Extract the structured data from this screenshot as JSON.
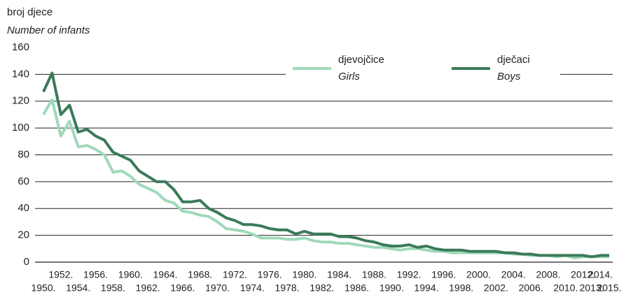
{
  "chart_data": {
    "type": "line",
    "y_label": "broj djece",
    "y_label_en": "Number of infants",
    "x": [
      1950,
      1951,
      1952,
      1953,
      1954,
      1955,
      1956,
      1957,
      1958,
      1959,
      1960,
      1961,
      1962,
      1963,
      1964,
      1965,
      1966,
      1967,
      1968,
      1969,
      1970,
      1971,
      1972,
      1973,
      1974,
      1975,
      1976,
      1977,
      1978,
      1979,
      1980,
      1981,
      1982,
      1983,
      1984,
      1985,
      1986,
      1987,
      1988,
      1989,
      1990,
      1991,
      1992,
      1993,
      1994,
      1995,
      1996,
      1997,
      1998,
      1999,
      2000,
      2001,
      2002,
      2003,
      2004,
      2005,
      2006,
      2007,
      2008,
      2009,
      2010,
      2011,
      2012,
      2013,
      2014,
      2015
    ],
    "series": [
      {
        "name": "djevojčice",
        "name_en": "Girls",
        "color": "#9fd9ba",
        "values": [
          110,
          121,
          94,
          105,
          86,
          87,
          84,
          80,
          67,
          68,
          64,
          58,
          55,
          52,
          46,
          44,
          38,
          37,
          35,
          34,
          30,
          25,
          24,
          23,
          21,
          18,
          18,
          18,
          17,
          17,
          18,
          16,
          15,
          15,
          14,
          14,
          13,
          12,
          11,
          11,
          10,
          9,
          10,
          10,
          9,
          8,
          8,
          7,
          7,
          7,
          7,
          7,
          7,
          7,
          6,
          6,
          5,
          5,
          5,
          4,
          5,
          3,
          4,
          4,
          4,
          4
        ]
      },
      {
        "name": "dječaci",
        "name_en": "Boys",
        "color": "#3b7a5a",
        "values": [
          127,
          141,
          110,
          117,
          97,
          99,
          94,
          91,
          82,
          79,
          76,
          68,
          64,
          60,
          60,
          54,
          45,
          45,
          46,
          40,
          37,
          33,
          31,
          28,
          28,
          27,
          25,
          24,
          24,
          21,
          23,
          21,
          21,
          21,
          19,
          19,
          18,
          16,
          15,
          13,
          12,
          12,
          13,
          11,
          12,
          10,
          9,
          9,
          9,
          8,
          8,
          8,
          8,
          7,
          7,
          6,
          6,
          5,
          5,
          5,
          5,
          5,
          5,
          4,
          5,
          5
        ]
      }
    ],
    "xlim": [
      1950,
      2015
    ],
    "xticks": [
      {
        "value": 1950,
        "label": "1950."
      },
      {
        "value": 1952,
        "label": "1952."
      },
      {
        "value": 1954,
        "label": "1954."
      },
      {
        "value": 1956,
        "label": "1956."
      },
      {
        "value": 1958,
        "label": "1958."
      },
      {
        "value": 1960,
        "label": "1960."
      },
      {
        "value": 1962,
        "label": "1962."
      },
      {
        "value": 1964,
        "label": "1964."
      },
      {
        "value": 1966,
        "label": "1966."
      },
      {
        "value": 1968,
        "label": "1968."
      },
      {
        "value": 1970,
        "label": "1970."
      },
      {
        "value": 1972,
        "label": "1972."
      },
      {
        "value": 1974,
        "label": "1974."
      },
      {
        "value": 1976,
        "label": "1976."
      },
      {
        "value": 1978,
        "label": "1978."
      },
      {
        "value": 1980,
        "label": "1980."
      },
      {
        "value": 1982,
        "label": "1982."
      },
      {
        "value": 1984,
        "label": "1984."
      },
      {
        "value": 1986,
        "label": "1986."
      },
      {
        "value": 1988,
        "label": "1988."
      },
      {
        "value": 1990,
        "label": "1990."
      },
      {
        "value": 1992,
        "label": "1992."
      },
      {
        "value": 1994,
        "label": "1994."
      },
      {
        "value": 1996,
        "label": "1996."
      },
      {
        "value": 1998,
        "label": "1998."
      },
      {
        "value": 2000,
        "label": "2000."
      },
      {
        "value": 2002,
        "label": "2002."
      },
      {
        "value": 2004,
        "label": "2004."
      },
      {
        "value": 2006,
        "label": "2006."
      },
      {
        "value": 2008,
        "label": "2008."
      },
      {
        "value": 2010,
        "label": "2010."
      },
      {
        "value": 2012,
        "label": "2012."
      },
      {
        "value": 2013,
        "label": "2013."
      },
      {
        "value": 2014,
        "label": "2014."
      },
      {
        "value": 2015,
        "label": "2015."
      }
    ],
    "ylim": [
      0,
      160
    ],
    "yticks": [
      0,
      20,
      40,
      60,
      80,
      100,
      120,
      140,
      160
    ],
    "grid": true
  }
}
